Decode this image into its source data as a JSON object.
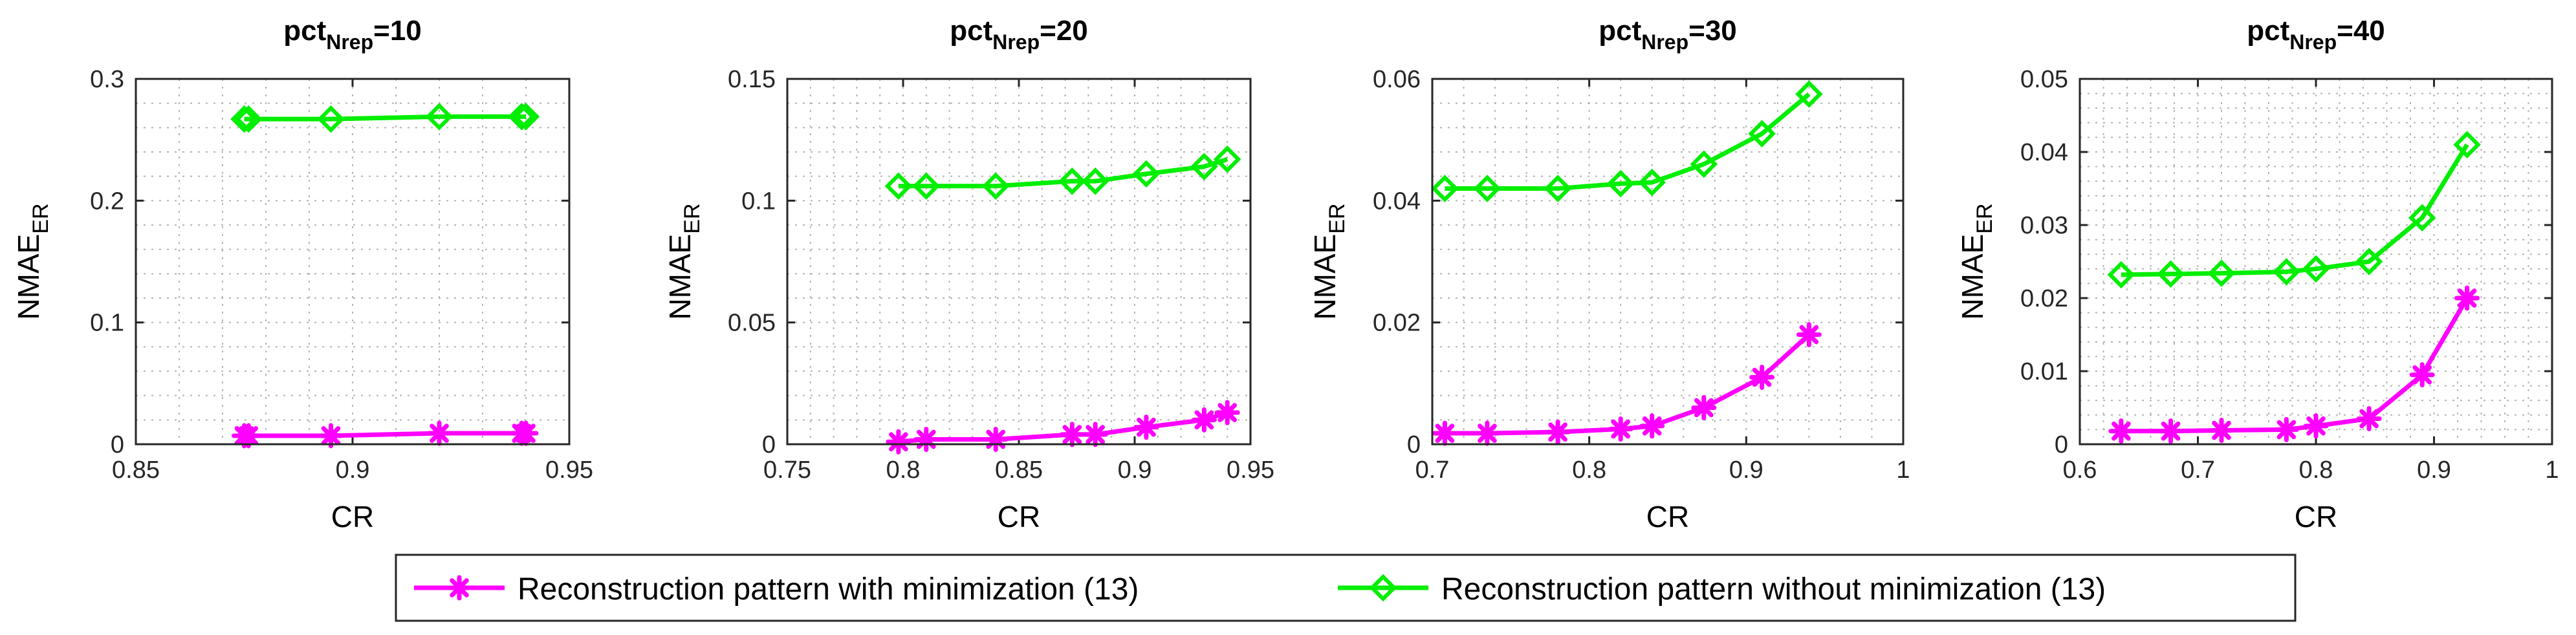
{
  "colors": {
    "with_min": "#ff00ff",
    "without_min": "#00ee00",
    "axis": "#262626",
    "grid": "#b4b4b4"
  },
  "legend": {
    "entries": [
      "Reconstruction pattern with minimization (13)",
      "Reconstruction pattern without minimization (13)"
    ]
  },
  "chart_data": [
    {
      "type": "line",
      "title": "pct",
      "title_sub": "Nrep",
      "title_suffix": "=10",
      "xlabel": "CR",
      "ylabel": "NMAE",
      "ylabel_sub": "ER",
      "xlim": [
        0.85,
        0.95
      ],
      "ylim": [
        0,
        0.3
      ],
      "xticks": [
        "0.85",
        "0.9",
        "0.95"
      ],
      "yticks": [
        "0",
        "0.1",
        "0.2",
        "0.3"
      ],
      "series": [
        {
          "name": "Reconstruction pattern with minimization (13)",
          "marker": "star",
          "x": [
            0.875,
            0.876,
            0.895,
            0.92,
            0.939,
            0.94
          ],
          "y": [
            0.007,
            0.007,
            0.007,
            0.009,
            0.009,
            0.009
          ]
        },
        {
          "name": "Reconstruction pattern without minimization (13)",
          "marker": "diamond",
          "x": [
            0.875,
            0.876,
            0.895,
            0.92,
            0.939,
            0.94
          ],
          "y": [
            0.267,
            0.267,
            0.267,
            0.269,
            0.269,
            0.269
          ]
        }
      ]
    },
    {
      "type": "line",
      "title": "pct",
      "title_sub": "Nrep",
      "title_suffix": "=20",
      "xlabel": "CR",
      "ylabel": "NMAE",
      "ylabel_sub": "ER",
      "xlim": [
        0.75,
        0.95
      ],
      "ylim": [
        0,
        0.15
      ],
      "xticks": [
        "0.75",
        "0.8",
        "0.85",
        "0.9",
        "0.95"
      ],
      "yticks": [
        "0",
        "0.05",
        "0.1",
        "0.15"
      ],
      "series": [
        {
          "name": "Reconstruction pattern with minimization (13)",
          "marker": "star",
          "x": [
            0.798,
            0.81,
            0.84,
            0.873,
            0.883,
            0.905,
            0.93,
            0.94
          ],
          "y": [
            0.001,
            0.002,
            0.002,
            0.004,
            0.004,
            0.007,
            0.01,
            0.013
          ]
        },
        {
          "name": "Reconstruction pattern without minimization (13)",
          "marker": "diamond",
          "x": [
            0.798,
            0.81,
            0.84,
            0.873,
            0.883,
            0.905,
            0.93,
            0.94
          ],
          "y": [
            0.106,
            0.106,
            0.106,
            0.108,
            0.108,
            0.111,
            0.114,
            0.117
          ]
        }
      ]
    },
    {
      "type": "line",
      "title": "pct",
      "title_sub": "Nrep",
      "title_suffix": "=30",
      "xlabel": "CR",
      "ylabel": "NMAE",
      "ylabel_sub": "ER",
      "xlim": [
        0.7,
        1
      ],
      "ylim": [
        0,
        0.06
      ],
      "xticks": [
        "0.7",
        "0.8",
        "0.9",
        "1"
      ],
      "yticks": [
        "0",
        "0.02",
        "0.04",
        "0.06"
      ],
      "series": [
        {
          "name": "Reconstruction pattern with minimization (13)",
          "marker": "star",
          "x": [
            0.708,
            0.735,
            0.78,
            0.82,
            0.84,
            0.873,
            0.91,
            0.94
          ],
          "y": [
            0.0018,
            0.0018,
            0.002,
            0.0025,
            0.003,
            0.006,
            0.011,
            0.018
          ]
        },
        {
          "name": "Reconstruction pattern without minimization (13)",
          "marker": "diamond",
          "x": [
            0.708,
            0.735,
            0.78,
            0.82,
            0.84,
            0.873,
            0.91,
            0.94
          ],
          "y": [
            0.042,
            0.042,
            0.042,
            0.0428,
            0.043,
            0.046,
            0.051,
            0.0575
          ]
        }
      ]
    },
    {
      "type": "line",
      "title": "pct",
      "title_sub": "Nrep",
      "title_suffix": "=40",
      "xlabel": "CR",
      "ylabel": "NMAE",
      "ylabel_sub": "ER",
      "xlim": [
        0.6,
        1
      ],
      "ylim": [
        0,
        0.05
      ],
      "xticks": [
        "0.6",
        "0.7",
        "0.8",
        "0.9",
        "1"
      ],
      "yticks": [
        "0",
        "0.01",
        "0.02",
        "0.03",
        "0.04",
        "0.05"
      ],
      "series": [
        {
          "name": "Reconstruction pattern with minimization (13)",
          "marker": "star",
          "x": [
            0.635,
            0.677,
            0.72,
            0.775,
            0.8,
            0.845,
            0.89,
            0.928
          ],
          "y": [
            0.0018,
            0.0018,
            0.0019,
            0.002,
            0.0025,
            0.0035,
            0.0095,
            0.02
          ]
        },
        {
          "name": "Reconstruction pattern without minimization (13)",
          "marker": "diamond",
          "x": [
            0.635,
            0.677,
            0.72,
            0.775,
            0.8,
            0.845,
            0.89,
            0.928
          ],
          "y": [
            0.0232,
            0.0233,
            0.0234,
            0.0236,
            0.024,
            0.025,
            0.031,
            0.041
          ]
        }
      ]
    }
  ]
}
